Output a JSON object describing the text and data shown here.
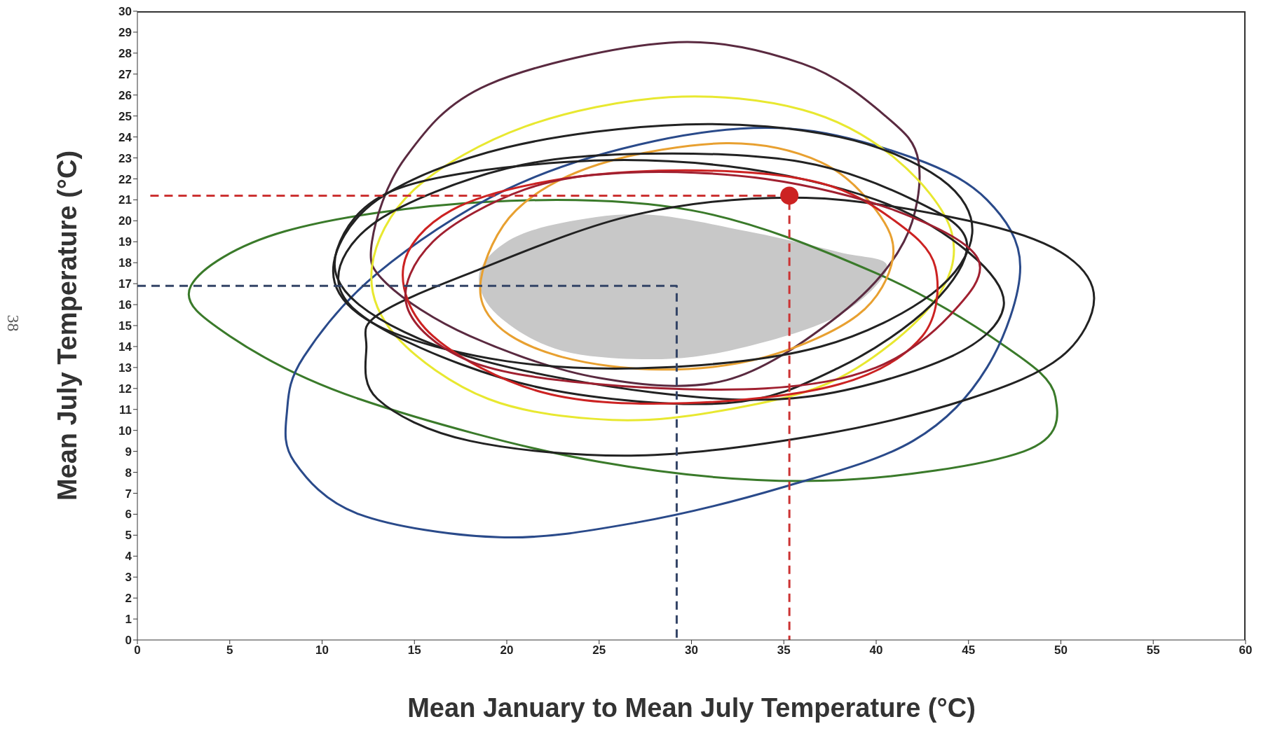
{
  "chart_data": {
    "type": "line",
    "xlabel": "Mean January to Mean July Temperature (°C)",
    "ylabel": "Mean July Temperature (°C)",
    "annotations": [
      "38"
    ],
    "xlim": [
      0,
      60
    ],
    "xticks": [
      0,
      5,
      10,
      15,
      20,
      25,
      30,
      35,
      40,
      45,
      50,
      55,
      60
    ],
    "ylim": [
      0,
      30
    ],
    "yticks": [
      0,
      1,
      2,
      3,
      4,
      5,
      6,
      7,
      8,
      9,
      10,
      11,
      12,
      13,
      14,
      15,
      16,
      17,
      18,
      19,
      20,
      21,
      22,
      23,
      24,
      25,
      26,
      27,
      28,
      29,
      30
    ],
    "grid": false,
    "marker": "none",
    "series": [
      {
        "color": "#cc3333",
        "line_style": "dashed",
        "x": [
          0.7,
          35.3,
          35.3
        ],
        "values": [
          21.2,
          21.2,
          0
        ]
      },
      {
        "color": "#334466",
        "line_style": "dashed",
        "x": [
          0,
          29.2,
          29.2
        ],
        "values": [
          16.9,
          16.9,
          0
        ]
      },
      {
        "type": "scatter",
        "color": "#cc2222",
        "marker": "circle",
        "x": [
          35.3
        ],
        "values": [
          21.2
        ]
      }
    ]
  }
}
